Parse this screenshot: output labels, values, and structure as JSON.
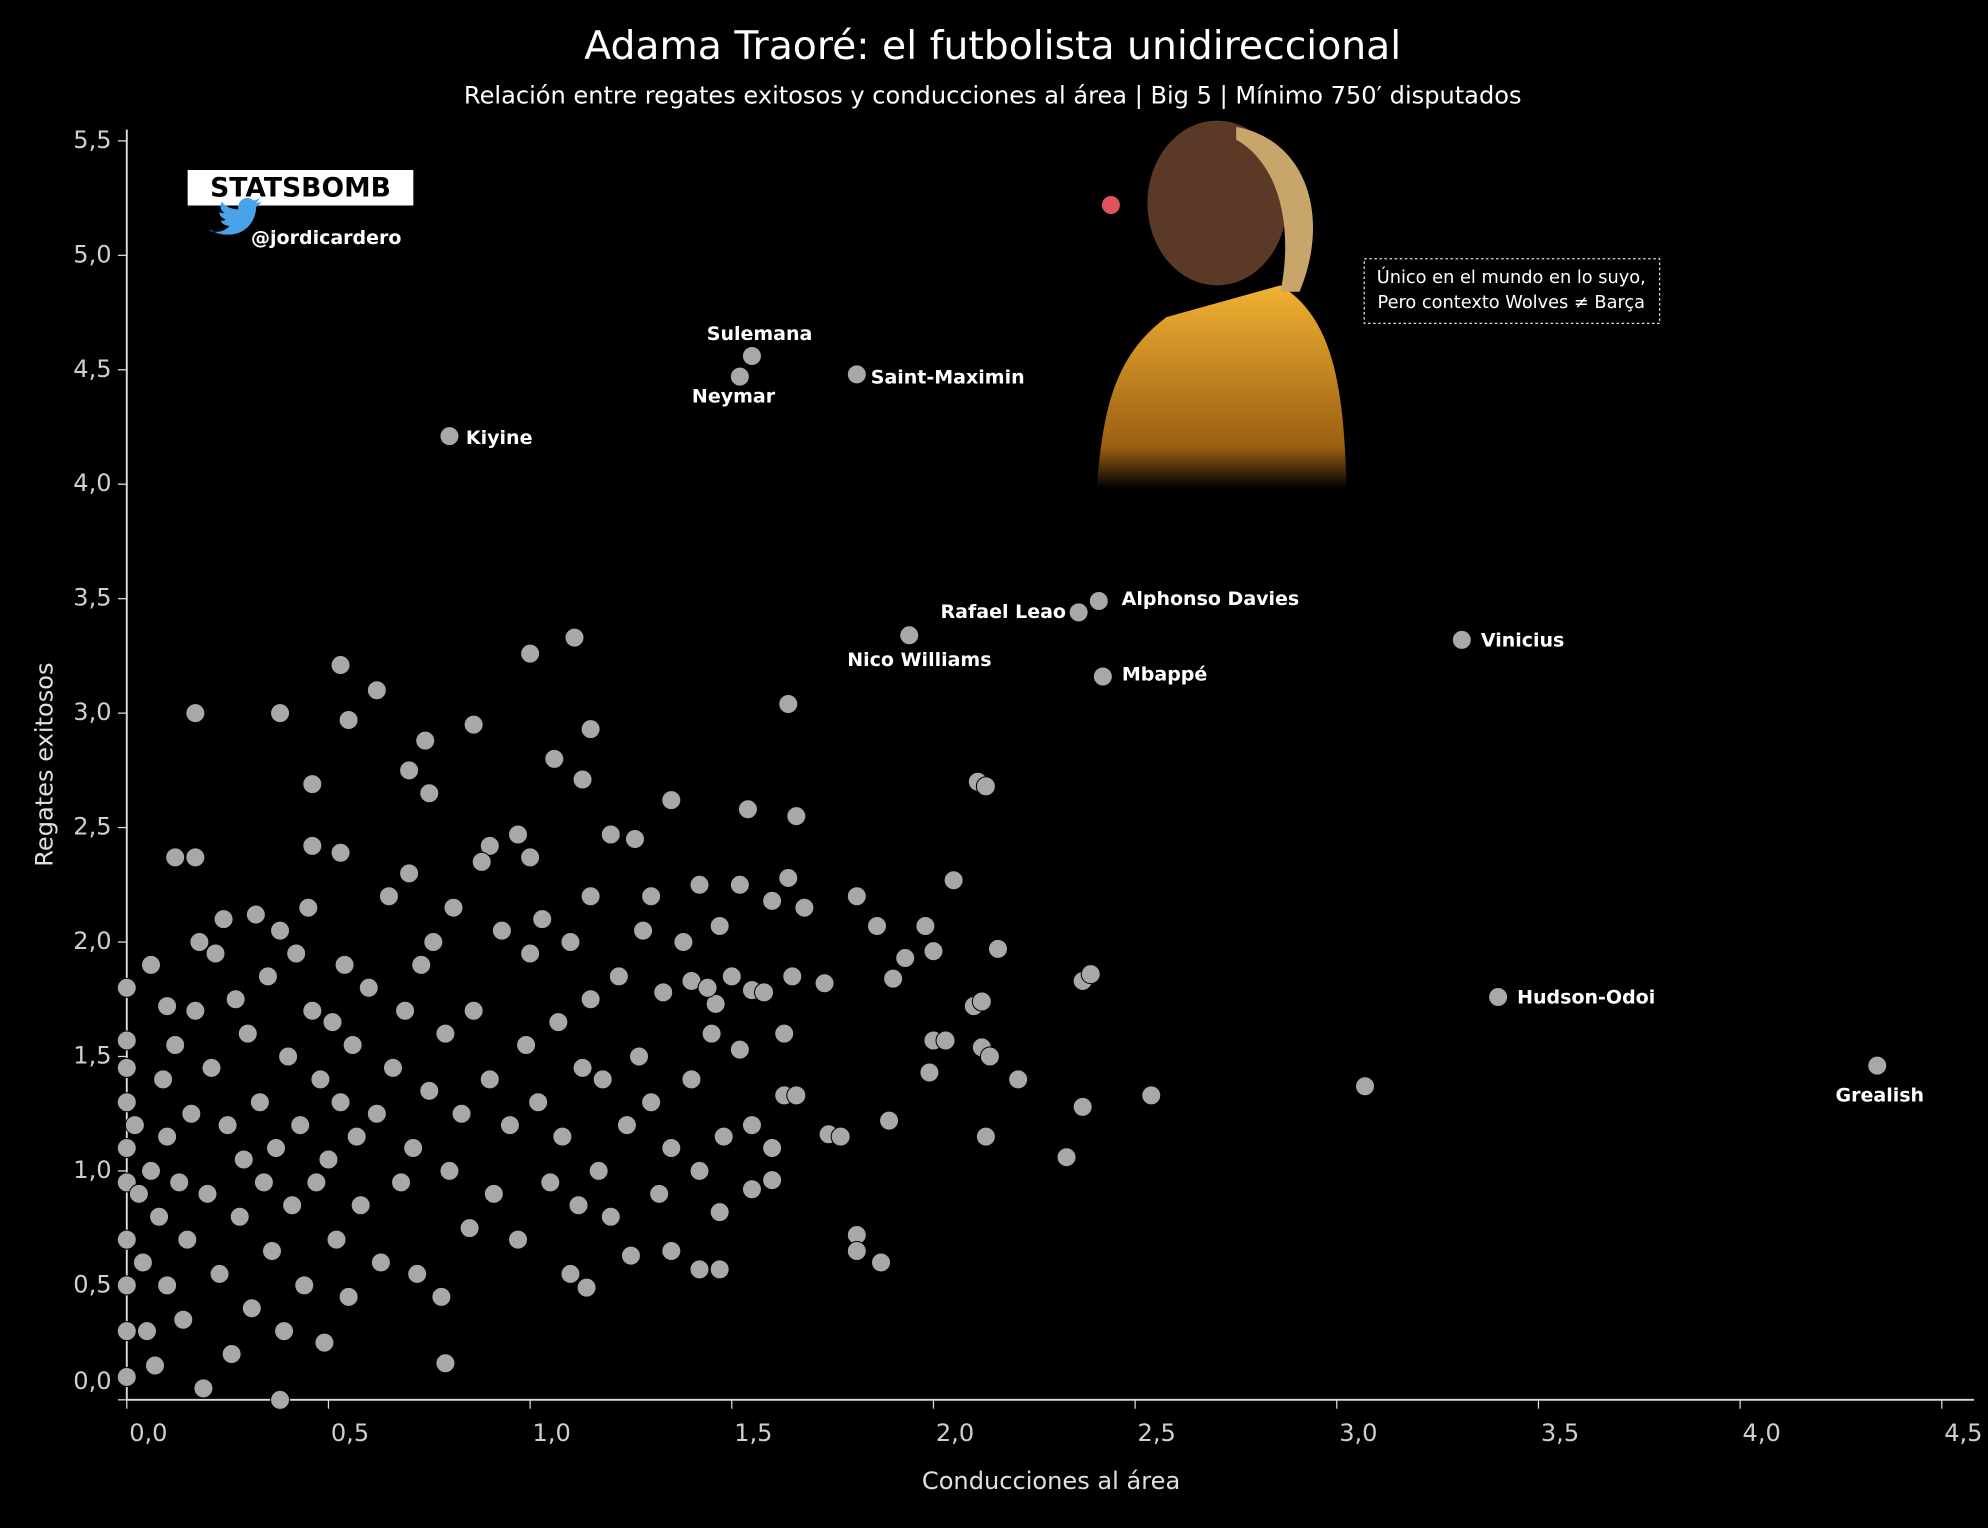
{
  "chart_data": {
    "type": "scatter",
    "title": "Adama Traoré: el futbolista unidireccional",
    "subtitle": "Relación entre regates exitosos y conducciones al área | Big 5 | Mínimo 750′ disputados",
    "x_label": "Conducciones al área",
    "y_label": "Regates exitosos",
    "brand": "STATSBOMB",
    "handle": "@jordicardero",
    "annotation": [
      "Único en el mundo en lo suyo,",
      "Pero contexto Wolves ≠ Barça"
    ],
    "xlim": [
      0,
      4.58
    ],
    "ylim": [
      0,
      5.55
    ],
    "xticks": [
      {
        "value": 0,
        "label": "0,0"
      },
      {
        "value": 0.5,
        "label": "0,5"
      },
      {
        "value": 1,
        "label": "1,0"
      },
      {
        "value": 1.5,
        "label": "1,5"
      },
      {
        "value": 2,
        "label": "2,0"
      },
      {
        "value": 2.5,
        "label": "2,5"
      },
      {
        "value": 3,
        "label": "3,0"
      },
      {
        "value": 3.5,
        "label": "3,5"
      },
      {
        "value": 4,
        "label": "4,0"
      },
      {
        "value": 4.5,
        "label": "4,5"
      }
    ],
    "yticks": [
      {
        "value": 0,
        "label": "0,0"
      },
      {
        "value": 0.5,
        "label": "0,5"
      },
      {
        "value": 1,
        "label": "1,0"
      },
      {
        "value": 1.5,
        "label": "1,5"
      },
      {
        "value": 2,
        "label": "2,0"
      },
      {
        "value": 2.5,
        "label": "2,5"
      },
      {
        "value": 3,
        "label": "3,0"
      },
      {
        "value": 3.5,
        "label": "3,5"
      },
      {
        "value": 4,
        "label": "4,0"
      },
      {
        "value": 4.5,
        "label": "4,5"
      },
      {
        "value": 5,
        "label": "5,0"
      },
      {
        "value": 5.5,
        "label": "5,5"
      }
    ],
    "highlight": {
      "color": "#e0525c",
      "x": [
        2.44
      ],
      "y": [
        5.22
      ]
    },
    "named": {
      "color": "#a8a8a8",
      "labels": [
        "Sulemana",
        "Neymar",
        "Saint-Maximin",
        "Kiyine",
        "Alphonso Davies",
        "Rafael Leao",
        "Nico Williams",
        "Mbappé",
        "Vinicius",
        "Hudson-Odoi",
        "Grealish"
      ],
      "x": [
        1.55,
        1.52,
        1.81,
        0.8,
        2.41,
        2.36,
        1.94,
        2.42,
        3.31,
        3.4,
        4.34
      ],
      "y": [
        4.56,
        4.47,
        4.48,
        4.21,
        3.49,
        3.44,
        3.34,
        3.16,
        3.32,
        1.76,
        1.46
      ]
    },
    "others": {
      "color": "#a8a8a8",
      "x": [
        0.17,
        0.38,
        0.53,
        0.55,
        0.62,
        1.0,
        1.11,
        0.86,
        0.74,
        1.15,
        1.64,
        1.06,
        1.13,
        0.7,
        0.75,
        0.46,
        1.35,
        2.11,
        2.13,
        1.54,
        1.66,
        0.12,
        0.17,
        0.46,
        0.53,
        0.9,
        0.97,
        1.2,
        1.26,
        1.0,
        1.42,
        1.52,
        1.64,
        2.05,
        1.81,
        1.15,
        1.6,
        1.68,
        1.3,
        1.86,
        1.98,
        1.47,
        2.0,
        2.16,
        1.93,
        1.4,
        1.65,
        1.73,
        2.37,
        2.39,
        1.9,
        2.1,
        2.12,
        1.46,
        1.55,
        2.0,
        2.03,
        2.12,
        2.14,
        1.99,
        2.21,
        1.63,
        1.66,
        2.54,
        2.37,
        3.07,
        1.89,
        1.74,
        1.77,
        2.13,
        2.33,
        1.55,
        1.6,
        1.47,
        1.81,
        1.81,
        1.87,
        1.42,
        1.47,
        1.35,
        0.79,
        1.1,
        1.14,
        0.38,
        0,
        0,
        0,
        0,
        0,
        0,
        0,
        0,
        0,
        0,
        0.02,
        0.03,
        0.04,
        0.05,
        0.06,
        0.07,
        0.08,
        0.09,
        0.1,
        0.1,
        0.06,
        0.1,
        0.12,
        0.13,
        0.14,
        0.15,
        0.16,
        0.17,
        0.18,
        0.19,
        0.2,
        0.21,
        0.22,
        0.23,
        0.24,
        0.25,
        0.26,
        0.27,
        0.28,
        0.29,
        0.3,
        0.31,
        0.32,
        0.33,
        0.34,
        0.35,
        0.36,
        0.37,
        0.38,
        0.39,
        0.4,
        0.41,
        0.42,
        0.43,
        0.44,
        0.45,
        0.46,
        0.47,
        0.48,
        0.49,
        0.5,
        0.51,
        0.52,
        0.53,
        0.54,
        0.55,
        0.56,
        0.57,
        0.58,
        0.6,
        0.62,
        0.63,
        0.65,
        0.66,
        0.68,
        0.69,
        0.7,
        0.71,
        0.72,
        0.73,
        0.75,
        0.76,
        0.78,
        0.79,
        0.8,
        0.81,
        0.83,
        0.85,
        0.86,
        0.88,
        0.9,
        0.91,
        0.93,
        0.95,
        0.97,
        0.99,
        1.0,
        1.02,
        1.03,
        1.05,
        1.07,
        1.08,
        1.1,
        1.12,
        1.13,
        1.15,
        1.17,
        1.18,
        1.2,
        1.22,
        1.24,
        1.25,
        1.27,
        1.28,
        1.3,
        1.32,
        1.33,
        1.35,
        1.38,
        1.4,
        1.42,
        1.44,
        1.45,
        1.48,
        1.5,
        1.52,
        1.55,
        1.58,
        1.6,
        1.63
      ],
      "y": [
        3.0,
        3.0,
        3.21,
        2.97,
        3.1,
        3.26,
        3.33,
        2.95,
        2.88,
        2.93,
        3.04,
        2.8,
        2.71,
        2.75,
        2.65,
        2.69,
        2.62,
        2.7,
        2.68,
        2.58,
        2.55,
        2.37,
        2.37,
        2.42,
        2.39,
        2.42,
        2.47,
        2.47,
        2.45,
        2.37,
        2.25,
        2.25,
        2.28,
        2.27,
        2.2,
        2.2,
        2.18,
        2.15,
        2.2,
        2.07,
        2.07,
        2.07,
        1.96,
        1.97,
        1.93,
        1.83,
        1.85,
        1.82,
        1.83,
        1.86,
        1.84,
        1.72,
        1.74,
        1.73,
        1.79,
        1.57,
        1.57,
        1.54,
        1.5,
        1.43,
        1.4,
        1.33,
        1.33,
        1.33,
        1.28,
        1.37,
        1.22,
        1.16,
        1.15,
        1.15,
        1.06,
        1.2,
        0.96,
        0.82,
        0.72,
        0.65,
        0.6,
        0.57,
        0.57,
        0.65,
        0.16,
        0.55,
        0.49,
        0.0,
        1.8,
        1.57,
        1.45,
        1.3,
        1.1,
        0.95,
        0.7,
        0.5,
        0.3,
        0.1,
        1.2,
        0.9,
        0.6,
        0.3,
        1.0,
        0.15,
        0.8,
        1.4,
        0.5,
        1.15,
        1.9,
        1.72,
        1.55,
        0.95,
        0.35,
        0.7,
        1.25,
        1.7,
        2.0,
        0.05,
        0.9,
        1.45,
        1.95,
        0.55,
        2.1,
        1.2,
        0.2,
        1.75,
        0.8,
        1.05,
        1.6,
        0.4,
        2.12,
        1.3,
        0.95,
        1.85,
        0.65,
        1.1,
        2.05,
        0.3,
        1.5,
        0.85,
        1.95,
        1.2,
        0.5,
        2.15,
        1.7,
        0.95,
        1.4,
        0.25,
        1.05,
        1.65,
        0.7,
        1.3,
        1.9,
        0.45,
        1.55,
        1.15,
        0.85,
        1.8,
        1.25,
        0.6,
        2.2,
        1.45,
        0.95,
        1.7,
        2.3,
        1.1,
        0.55,
        1.9,
        1.35,
        2.0,
        0.45,
        1.6,
        1.0,
        2.15,
        1.25,
        0.75,
        1.7,
        2.35,
        1.4,
        0.9,
        2.05,
        1.2,
        0.7,
        1.55,
        1.95,
        1.3,
        2.1,
        0.95,
        1.65,
        1.15,
        2.0,
        0.85,
        1.45,
        1.75,
        1.0,
        1.4,
        0.8,
        1.85,
        1.2,
        0.63,
        1.5,
        2.05,
        1.3,
        0.9,
        1.78,
        1.1,
        2.0,
        1.4,
        1.0,
        1.8,
        1.6,
        1.15,
        1.85,
        1.53,
        0.92,
        1.78,
        1.1,
        1.6
      ]
    }
  }
}
